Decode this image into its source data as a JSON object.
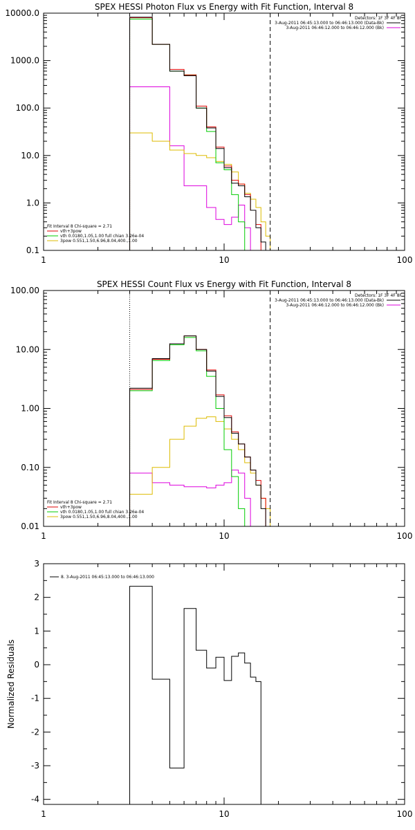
{
  "colors": {
    "background": "#ffffff",
    "axes": "#000000",
    "data": "#000000",
    "total": "#000000",
    "red": "#dd0000",
    "green": "#00cc00",
    "magenta": "#dd00dd",
    "yellow": "#ddbb00"
  },
  "chart_data": [
    {
      "type": "line",
      "title": "SPEX HESSI Photon Flux vs Energy with Fit Function, Interval 8",
      "xscale": "log",
      "yscale": "log",
      "xlim": [
        1,
        100
      ],
      "ylim": [
        0.1,
        10000
      ],
      "xticks": [
        1,
        10,
        100
      ],
      "xtick_labels": [
        "1",
        "10",
        "100"
      ],
      "yticks": [
        0.1,
        1,
        10,
        100,
        1000,
        10000
      ],
      "ytick_labels": [
        "0.1",
        "1.0",
        "10.0",
        "100.0",
        "1000.0",
        "10000.0"
      ],
      "vlines": [
        {
          "x": 3.0,
          "style": "dotted"
        },
        {
          "x": 18.0,
          "style": "dashed"
        }
      ],
      "edges": [
        3,
        4,
        5,
        6,
        7,
        8,
        9,
        10,
        11,
        12,
        13,
        14,
        15,
        16,
        17,
        18,
        20
      ],
      "legend_topright": [
        "Detectors: 1F 3F 4F 8F",
        "3-Aug-2011 06:45:13.000 to 06:46:13.000 (Data-Bk)",
        "3-Aug-2011 06:46:12.000 to 06:46:12.000 (Bk)"
      ],
      "legend_bottomleft": [
        "Fit Interval 8   Chi-square = 2.71",
        "vth+3pow",
        "vth 0.0180,1.05,1.00  full chian 3.26e-04",
        "3pow 0.551,1.50,6.96,8.04,400.,1.00"
      ],
      "series": [
        {
          "name": "",
          "color": "magenta",
          "values": [
            280,
            280,
            16,
            2.3,
            2.3,
            0.8,
            0.45,
            0.35,
            0.5,
            0.9,
            0.3,
            null,
            null,
            null,
            null,
            null
          ]
        },
        {
          "name": "3pow 0.551,1.50,6.96,8.04,400.,1.00",
          "color": "yellow",
          "values": [
            30,
            20,
            13,
            11,
            10,
            9,
            7.5,
            6.5,
            4.5,
            2.5,
            1.6,
            1.2,
            0.8,
            0.4,
            0.2,
            0.1
          ]
        },
        {
          "name": "vth 0.0180,1.05,1.00  full chian 3.26e-04",
          "color": "green",
          "values": [
            7500,
            2200,
            600,
            500,
            100,
            32,
            7,
            5,
            1.5,
            0.4,
            0.1,
            null,
            null,
            null,
            null,
            null
          ]
        },
        {
          "name": "vth+3pow",
          "color": "red",
          "values": [
            8000,
            2200,
            650,
            500,
            110,
            40,
            15,
            6,
            3,
            2.5,
            1.5,
            0.7,
            0.35,
            null,
            null,
            null
          ]
        },
        {
          "name": "",
          "color": "total",
          "values": [
            8200,
            2200,
            600,
            480,
            100,
            38,
            14,
            5.5,
            2.6,
            2.3,
            1.35,
            0.7,
            0.3,
            0.15,
            null,
            null
          ]
        }
      ]
    },
    {
      "type": "line",
      "title": "SPEX HESSI Count Flux vs Energy with Fit Function, Interval 8",
      "xscale": "log",
      "yscale": "log",
      "xlim": [
        1,
        100
      ],
      "ylim": [
        0.01,
        100
      ],
      "xticks": [
        1,
        10,
        100
      ],
      "xtick_labels": [
        "1",
        "10",
        "100"
      ],
      "yticks": [
        0.01,
        0.1,
        1,
        10,
        100
      ],
      "ytick_labels": [
        "0.01",
        "0.10",
        "1.00",
        "10.00",
        "100.00"
      ],
      "vlines": [
        {
          "x": 3.0,
          "style": "dotted"
        },
        {
          "x": 18.0,
          "style": "dashed"
        }
      ],
      "edges": [
        3,
        4,
        5,
        6,
        7,
        8,
        9,
        10,
        11,
        12,
        13,
        14,
        15,
        16,
        17,
        18,
        20
      ],
      "legend_topright": [
        "Detectors: 1F 3F 4F 8F",
        "3-Aug-2011 06:45:13.000 to 06:46:13.000 (Data-Bk)",
        "3-Aug-2011 06:46:12.000 to 06:46:12.000 (Bk)"
      ],
      "legend_bottomleft": [
        "Fit Interval 8   Chi-square = 2.71",
        "vth+3pow",
        "vth 0.0180,1.05,1.00  full chian 3.26e-04",
        "3pow 0.551,1.50,6.96,8.04,400.,1.00"
      ],
      "series": [
        {
          "name": "",
          "color": "magenta",
          "values": [
            0.08,
            0.055,
            0.05,
            0.047,
            0.047,
            0.045,
            0.05,
            0.055,
            0.09,
            0.08,
            0.03,
            null,
            null,
            null,
            null,
            null
          ]
        },
        {
          "name": "3pow 0.551,1.50,6.96,8.04,400.,1.00",
          "color": "yellow",
          "values": [
            0.035,
            0.1,
            0.3,
            0.5,
            0.68,
            0.72,
            0.6,
            0.45,
            0.3,
            0.2,
            0.12,
            0.08,
            0.05,
            0.03,
            0.02,
            0.01
          ]
        },
        {
          "name": "vth 0.0180,1.05,1.00  full chian 3.26e-04",
          "color": "green",
          "values": [
            2.0,
            6.5,
            12,
            16,
            9.5,
            3.5,
            1.0,
            0.2,
            0.07,
            0.02,
            0.01,
            null,
            null,
            null,
            null,
            null
          ]
        },
        {
          "name": "vth+3pow",
          "color": "red",
          "values": [
            2.1,
            6.8,
            12.5,
            17,
            10,
            4.5,
            1.7,
            0.75,
            0.4,
            0.25,
            0.15,
            0.09,
            0.06,
            0.03,
            null,
            null
          ]
        },
        {
          "name": "",
          "color": "total",
          "values": [
            2.2,
            7.0,
            12.5,
            17,
            10,
            4.3,
            1.6,
            0.7,
            0.38,
            0.25,
            0.15,
            0.09,
            0.05,
            0.02,
            null,
            null
          ]
        }
      ]
    },
    {
      "type": "line",
      "title": "",
      "ylabel": "Normalized Residuals",
      "xscale": "log",
      "yscale": "linear",
      "xlim": [
        1,
        100
      ],
      "ylim": [
        -4.15,
        3
      ],
      "xticks": [
        1,
        10,
        100
      ],
      "xtick_labels": [
        "1",
        "10",
        "100"
      ],
      "yticks": [
        -4,
        -3,
        -2,
        -1,
        0,
        1,
        2,
        3
      ],
      "ytick_labels": [
        "-4",
        "-3",
        "-2",
        "-1",
        "0",
        "1",
        "2",
        "3"
      ],
      "legend": "8.  3-Aug-2011 06:45:13.000 to 06:46:13.000",
      "edges": [
        3,
        4,
        5,
        6,
        7,
        8,
        9,
        10,
        11,
        12,
        13,
        14,
        15,
        16,
        17,
        18
      ],
      "series": [
        {
          "name": "8.  3-Aug-2011 06:45:13.000 to 06:46:13.000",
          "color": "data",
          "values": [
            2.33,
            -0.43,
            -3.07,
            1.67,
            0.43,
            -0.1,
            0.22,
            -0.47,
            0.25,
            0.35,
            0.05,
            -0.37,
            -0.5
          ]
        }
      ]
    }
  ]
}
